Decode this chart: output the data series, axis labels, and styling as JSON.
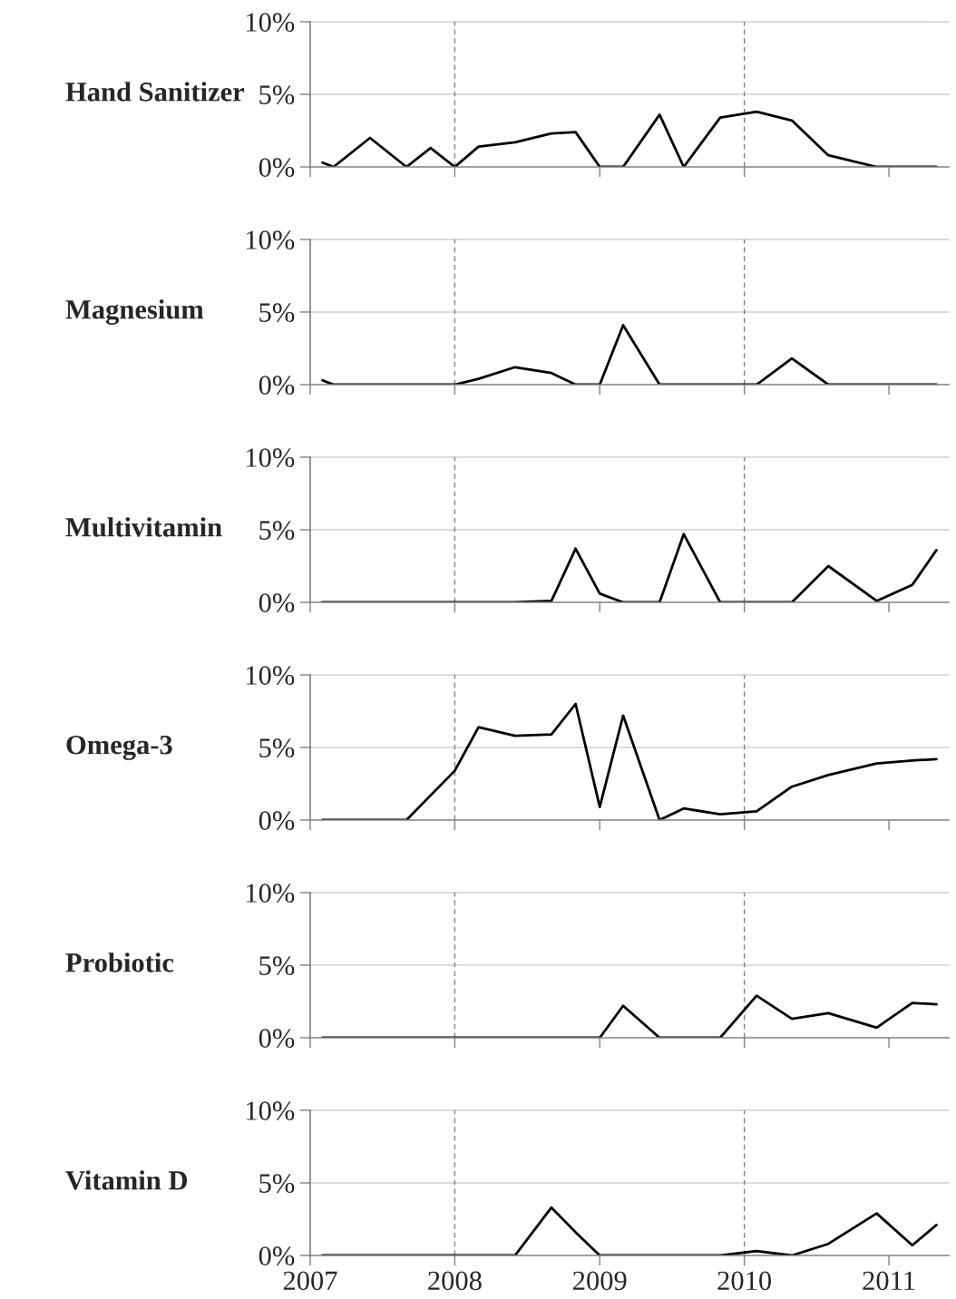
{
  "chart_data": [
    {
      "type": "line",
      "title": "Hand Sanitizer",
      "x": [
        "2007-02",
        "2007-03",
        "2007-06",
        "2007-09",
        "2007-11",
        "2008-01",
        "2008-03",
        "2008-06",
        "2008-09",
        "2008-11",
        "2009-01",
        "2009-03",
        "2009-06",
        "2009-08",
        "2009-11",
        "2010-02",
        "2010-05",
        "2010-08",
        "2010-12",
        "2011-03",
        "2011-05"
      ],
      "series": [
        {
          "color": "#000000",
          "values": [
            0.3,
            0,
            2.0,
            0,
            1.3,
            0,
            1.4,
            1.7,
            2.3,
            2.4,
            0,
            0,
            3.6,
            0,
            3.4,
            3.8,
            3.2,
            0.8,
            0,
            0,
            0
          ]
        }
      ],
      "xlim": [
        "2007",
        "2011-06"
      ],
      "xticks": [
        "2007",
        "2008",
        "2009",
        "2010",
        "2011"
      ],
      "ylim": [
        0,
        10
      ],
      "yticks": [
        {
          "value": 0,
          "label": "0%"
        },
        {
          "value": 5,
          "label": "5%"
        },
        {
          "value": 10,
          "label": "10%"
        }
      ],
      "tick_labels": "y",
      "ref_lines": [
        {
          "axis": "y",
          "value": 5,
          "color": "#d0d0d0",
          "line_style": "solid"
        },
        {
          "axis": "y",
          "value": 10,
          "color": "#d0d0d0",
          "line_style": "solid"
        },
        {
          "axis": "x",
          "value": "2008",
          "color": "#808080",
          "line_style": "dashed"
        },
        {
          "axis": "x",
          "value": "2010",
          "color": "#808080",
          "line_style": "dashed"
        }
      ]
    },
    {
      "type": "line",
      "title": "Magnesium",
      "x": [
        "2007-02",
        "2007-03",
        "2007-06",
        "2007-09",
        "2007-11",
        "2008-01",
        "2008-03",
        "2008-06",
        "2008-09",
        "2008-11",
        "2009-01",
        "2009-03",
        "2009-06",
        "2009-08",
        "2009-11",
        "2010-02",
        "2010-05",
        "2010-08",
        "2010-12",
        "2011-03",
        "2011-05"
      ],
      "series": [
        {
          "color": "#000000",
          "values": [
            0.3,
            0,
            0,
            0,
            0,
            0,
            0.4,
            1.2,
            0.8,
            0,
            0,
            4.1,
            0,
            0,
            0,
            0,
            1.8,
            0,
            0,
            0,
            0
          ]
        }
      ],
      "xlim": [
        "2007",
        "2011-06"
      ],
      "xticks": [
        "2007",
        "2008",
        "2009",
        "2010",
        "2011"
      ],
      "ylim": [
        0,
        10
      ],
      "yticks": [
        {
          "value": 0,
          "label": "0%"
        },
        {
          "value": 5,
          "label": "5%"
        },
        {
          "value": 10,
          "label": "10%"
        }
      ],
      "tick_labels": "y",
      "ref_lines": [
        {
          "axis": "y",
          "value": 5,
          "color": "#d0d0d0",
          "line_style": "solid"
        },
        {
          "axis": "y",
          "value": 10,
          "color": "#d0d0d0",
          "line_style": "solid"
        },
        {
          "axis": "x",
          "value": "2008",
          "color": "#808080",
          "line_style": "dashed"
        },
        {
          "axis": "x",
          "value": "2010",
          "color": "#808080",
          "line_style": "dashed"
        }
      ]
    },
    {
      "type": "line",
      "title": "Multivitamin",
      "x": [
        "2007-02",
        "2007-03",
        "2007-06",
        "2007-09",
        "2007-11",
        "2008-01",
        "2008-03",
        "2008-06",
        "2008-09",
        "2008-11",
        "2009-01",
        "2009-03",
        "2009-06",
        "2009-08",
        "2009-11",
        "2010-02",
        "2010-05",
        "2010-08",
        "2010-12",
        "2011-03",
        "2011-05"
      ],
      "series": [
        {
          "color": "#000000",
          "values": [
            0,
            0,
            0,
            0,
            0,
            0,
            0,
            0,
            0.1,
            3.7,
            0.6,
            0,
            0,
            4.7,
            0,
            0,
            0,
            2.5,
            0.1,
            1.2,
            3.6
          ]
        }
      ],
      "xlim": [
        "2007",
        "2011-06"
      ],
      "xticks": [
        "2007",
        "2008",
        "2009",
        "2010",
        "2011"
      ],
      "ylim": [
        0,
        10
      ],
      "yticks": [
        {
          "value": 0,
          "label": "0%"
        },
        {
          "value": 5,
          "label": "5%"
        },
        {
          "value": 10,
          "label": "10%"
        }
      ],
      "tick_labels": "y",
      "ref_lines": [
        {
          "axis": "y",
          "value": 5,
          "color": "#d0d0d0",
          "line_style": "solid"
        },
        {
          "axis": "y",
          "value": 10,
          "color": "#d0d0d0",
          "line_style": "solid"
        },
        {
          "axis": "x",
          "value": "2008",
          "color": "#808080",
          "line_style": "dashed"
        },
        {
          "axis": "x",
          "value": "2010",
          "color": "#808080",
          "line_style": "dashed"
        }
      ]
    },
    {
      "type": "line",
      "title": "Omega-3",
      "x": [
        "2007-02",
        "2007-03",
        "2007-06",
        "2007-09",
        "2008-01",
        "2008-03",
        "2008-06",
        "2008-09",
        "2008-11",
        "2009-01",
        "2009-03",
        "2009-06",
        "2009-08",
        "2009-11",
        "2010-02",
        "2010-05",
        "2010-08",
        "2010-12",
        "2011-03",
        "2011-05"
      ],
      "series": [
        {
          "color": "#000000",
          "values": [
            0,
            0,
            0,
            0,
            3.4,
            6.4,
            5.8,
            5.9,
            8.0,
            0.9,
            7.2,
            0,
            0.8,
            0.4,
            0.6,
            2.3,
            3.1,
            3.9,
            4.1,
            4.2
          ]
        }
      ],
      "xlim": [
        "2007",
        "2011-06"
      ],
      "xticks": [
        "2007",
        "2008",
        "2009",
        "2010",
        "2011"
      ],
      "ylim": [
        0,
        10
      ],
      "yticks": [
        {
          "value": 0,
          "label": "0%"
        },
        {
          "value": 5,
          "label": "5%"
        },
        {
          "value": 10,
          "label": "10%"
        }
      ],
      "tick_labels": "y",
      "ref_lines": [
        {
          "axis": "y",
          "value": 5,
          "color": "#d0d0d0",
          "line_style": "solid"
        },
        {
          "axis": "y",
          "value": 10,
          "color": "#d0d0d0",
          "line_style": "solid"
        },
        {
          "axis": "x",
          "value": "2008",
          "color": "#808080",
          "line_style": "dashed"
        },
        {
          "axis": "x",
          "value": "2010",
          "color": "#808080",
          "line_style": "dashed"
        }
      ]
    },
    {
      "type": "line",
      "title": "Probiotic",
      "x": [
        "2007-02",
        "2007-03",
        "2007-06",
        "2007-09",
        "2007-11",
        "2008-01",
        "2008-03",
        "2008-06",
        "2008-09",
        "2008-11",
        "2009-01",
        "2009-03",
        "2009-06",
        "2009-08",
        "2009-11",
        "2010-02",
        "2010-05",
        "2010-08",
        "2010-12",
        "2011-03",
        "2011-05"
      ],
      "series": [
        {
          "color": "#000000",
          "values": [
            0,
            0,
            0,
            0,
            0,
            0,
            0,
            0,
            0,
            0,
            0,
            2.2,
            0,
            0,
            0,
            2.9,
            1.3,
            1.7,
            0.7,
            2.4,
            2.3
          ]
        }
      ],
      "xlim": [
        "2007",
        "2011-06"
      ],
      "xticks": [
        "2007",
        "2008",
        "2009",
        "2010",
        "2011"
      ],
      "ylim": [
        0,
        10
      ],
      "yticks": [
        {
          "value": 0,
          "label": "0%"
        },
        {
          "value": 5,
          "label": "5%"
        },
        {
          "value": 10,
          "label": "10%"
        }
      ],
      "tick_labels": "y",
      "ref_lines": [
        {
          "axis": "y",
          "value": 5,
          "color": "#d0d0d0",
          "line_style": "solid"
        },
        {
          "axis": "y",
          "value": 10,
          "color": "#d0d0d0",
          "line_style": "solid"
        },
        {
          "axis": "x",
          "value": "2008",
          "color": "#808080",
          "line_style": "dashed"
        },
        {
          "axis": "x",
          "value": "2010",
          "color": "#808080",
          "line_style": "dashed"
        }
      ]
    },
    {
      "type": "line",
      "title": "Vitamin D",
      "x": [
        "2007-02",
        "2007-03",
        "2007-06",
        "2007-09",
        "2007-11",
        "2008-01",
        "2008-03",
        "2008-06",
        "2008-09",
        "2008-11",
        "2009-01",
        "2009-03",
        "2009-06",
        "2009-08",
        "2009-11",
        "2010-02",
        "2010-05",
        "2010-08",
        "2010-12",
        "2011-03",
        "2011-05"
      ],
      "series": [
        {
          "color": "#000000",
          "values": [
            0,
            0,
            0,
            0,
            0,
            0,
            0,
            0,
            3.3,
            1.6,
            0,
            0,
            0,
            0,
            0,
            0.3,
            0,
            0.8,
            2.9,
            0.7,
            2.1
          ]
        }
      ],
      "xlim": [
        "2007",
        "2011-06"
      ],
      "xticks": [
        "2007",
        "2008",
        "2009",
        "2010",
        "2011"
      ],
      "ylim": [
        0,
        10
      ],
      "yticks": [
        {
          "value": 0,
          "label": "0%"
        },
        {
          "value": 5,
          "label": "5%"
        },
        {
          "value": 10,
          "label": "10%"
        }
      ],
      "ref_lines": [
        {
          "axis": "y",
          "value": 5,
          "color": "#d0d0d0",
          "line_style": "solid"
        },
        {
          "axis": "y",
          "value": 10,
          "color": "#d0d0d0",
          "line_style": "solid"
        },
        {
          "axis": "x",
          "value": "2008",
          "color": "#808080",
          "line_style": "dashed"
        },
        {
          "axis": "x",
          "value": "2010",
          "color": "#808080",
          "line_style": "dashed"
        }
      ]
    }
  ]
}
